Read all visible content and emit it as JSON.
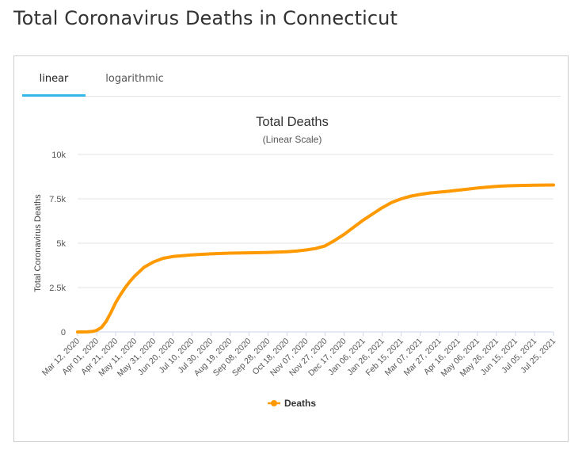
{
  "page": {
    "title": "Total Coronavirus Deaths in Connecticut"
  },
  "tabs": [
    {
      "label": "linear",
      "active": true
    },
    {
      "label": "logarithmic",
      "active": false
    }
  ],
  "colors": {
    "series": "#ff9900",
    "tab_active": "#35b6e8",
    "grid": "#e6e6e6"
  },
  "chart_data": {
    "type": "line",
    "title": "Total Deaths",
    "subtitle": "(Linear Scale)",
    "xlabel": "",
    "ylabel": "Total Coronavirus Deaths",
    "ylim": [
      0,
      10000
    ],
    "yticks": [
      0,
      2500,
      5000,
      7500,
      10000
    ],
    "ytick_labels": [
      "0",
      "2.5k",
      "5k",
      "7.5k",
      "10k"
    ],
    "grid": true,
    "legend_position": "bottom-center",
    "xtick_labels": [
      "Mar 12, 2020",
      "Apr 01, 2020",
      "Apr 21, 2020",
      "May 11, 2020",
      "May 31, 2020",
      "Jun 20, 2020",
      "Jul 10, 2020",
      "Jul 30, 2020",
      "Aug 19, 2020",
      "Sep 08, 2020",
      "Sep 28, 2020",
      "Oct 18, 2020",
      "Nov 07, 2020",
      "Nov 27, 2020",
      "Dec 17, 2020",
      "Jan 06, 2021",
      "Jan 26, 2021",
      "Feb 15, 2021",
      "Mar 07, 2021",
      "Mar 27, 2021",
      "Apr 16, 2021",
      "May 06, 2021",
      "May 26, 2021",
      "Jun 15, 2021",
      "Jul 05, 2021",
      "Jul 25, 2021"
    ],
    "x_range": [
      "2020-03-12",
      "2021-07-25"
    ],
    "series": [
      {
        "name": "Deaths",
        "color": "#ff9900",
        "points": [
          [
            "2020-03-12",
            0
          ],
          [
            "2020-03-22",
            5
          ],
          [
            "2020-03-28",
            30
          ],
          [
            "2020-04-01",
            90
          ],
          [
            "2020-04-06",
            250
          ],
          [
            "2020-04-11",
            600
          ],
          [
            "2020-04-16",
            1100
          ],
          [
            "2020-04-21",
            1650
          ],
          [
            "2020-04-26",
            2100
          ],
          [
            "2020-05-01",
            2500
          ],
          [
            "2020-05-06",
            2850
          ],
          [
            "2020-05-11",
            3150
          ],
          [
            "2020-05-16",
            3400
          ],
          [
            "2020-05-21",
            3650
          ],
          [
            "2020-05-26",
            3800
          ],
          [
            "2020-05-31",
            3950
          ],
          [
            "2020-06-10",
            4150
          ],
          [
            "2020-06-20",
            4250
          ],
          [
            "2020-06-30",
            4300
          ],
          [
            "2020-07-10",
            4340
          ],
          [
            "2020-07-30",
            4400
          ],
          [
            "2020-08-19",
            4440
          ],
          [
            "2020-09-08",
            4460
          ],
          [
            "2020-09-28",
            4480
          ],
          [
            "2020-10-18",
            4520
          ],
          [
            "2020-10-28",
            4560
          ],
          [
            "2020-11-07",
            4620
          ],
          [
            "2020-11-17",
            4700
          ],
          [
            "2020-11-27",
            4850
          ],
          [
            "2020-12-07",
            5150
          ],
          [
            "2020-12-17",
            5500
          ],
          [
            "2020-12-27",
            5900
          ],
          [
            "2021-01-06",
            6300
          ],
          [
            "2021-01-16",
            6650
          ],
          [
            "2021-01-26",
            7000
          ],
          [
            "2021-02-05",
            7300
          ],
          [
            "2021-02-15",
            7500
          ],
          [
            "2021-02-25",
            7650
          ],
          [
            "2021-03-07",
            7750
          ],
          [
            "2021-03-17",
            7830
          ],
          [
            "2021-03-27",
            7880
          ],
          [
            "2021-04-06",
            7930
          ],
          [
            "2021-04-16",
            7990
          ],
          [
            "2021-04-26",
            8050
          ],
          [
            "2021-05-06",
            8110
          ],
          [
            "2021-05-16",
            8160
          ],
          [
            "2021-05-26",
            8200
          ],
          [
            "2021-06-05",
            8230
          ],
          [
            "2021-06-15",
            8250
          ],
          [
            "2021-06-25",
            8260
          ],
          [
            "2021-07-05",
            8270
          ],
          [
            "2021-07-15",
            8275
          ],
          [
            "2021-07-25",
            8280
          ]
        ]
      }
    ]
  }
}
